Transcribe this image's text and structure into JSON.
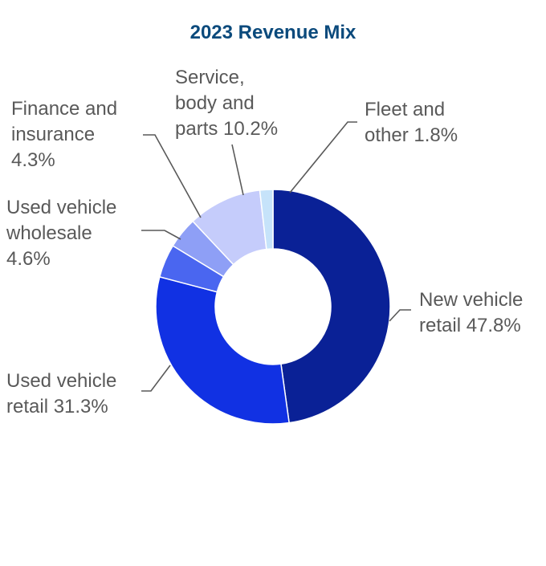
{
  "chart_data": {
    "type": "pie",
    "variant": "donut",
    "title": "2023 Revenue Mix",
    "title_color": "#0B4A7C",
    "label_color": "#595959",
    "slices": [
      {
        "lines": [
          "New vehicle",
          "retail 47.8%"
        ],
        "value": 47.8,
        "color": "#0A2196"
      },
      {
        "lines": [
          "Used vehicle",
          "retail 31.3%"
        ],
        "value": 31.3,
        "color": "#1131E3"
      },
      {
        "lines": [
          "Used vehicle",
          "wholesale",
          "4.6%"
        ],
        "value": 4.6,
        "color": "#4A66F0"
      },
      {
        "lines": [
          "Finance and",
          "insurance",
          "4.3%"
        ],
        "value": 4.3,
        "color": "#8E9FF6"
      },
      {
        "lines": [
          "Service,",
          "body and",
          "parts 10.2%"
        ],
        "value": 10.2,
        "color": "#C5CCFB"
      },
      {
        "lines": [
          "Fleet and",
          "other 1.8%"
        ],
        "value": 1.8,
        "color": "#C6E3FA"
      }
    ]
  }
}
